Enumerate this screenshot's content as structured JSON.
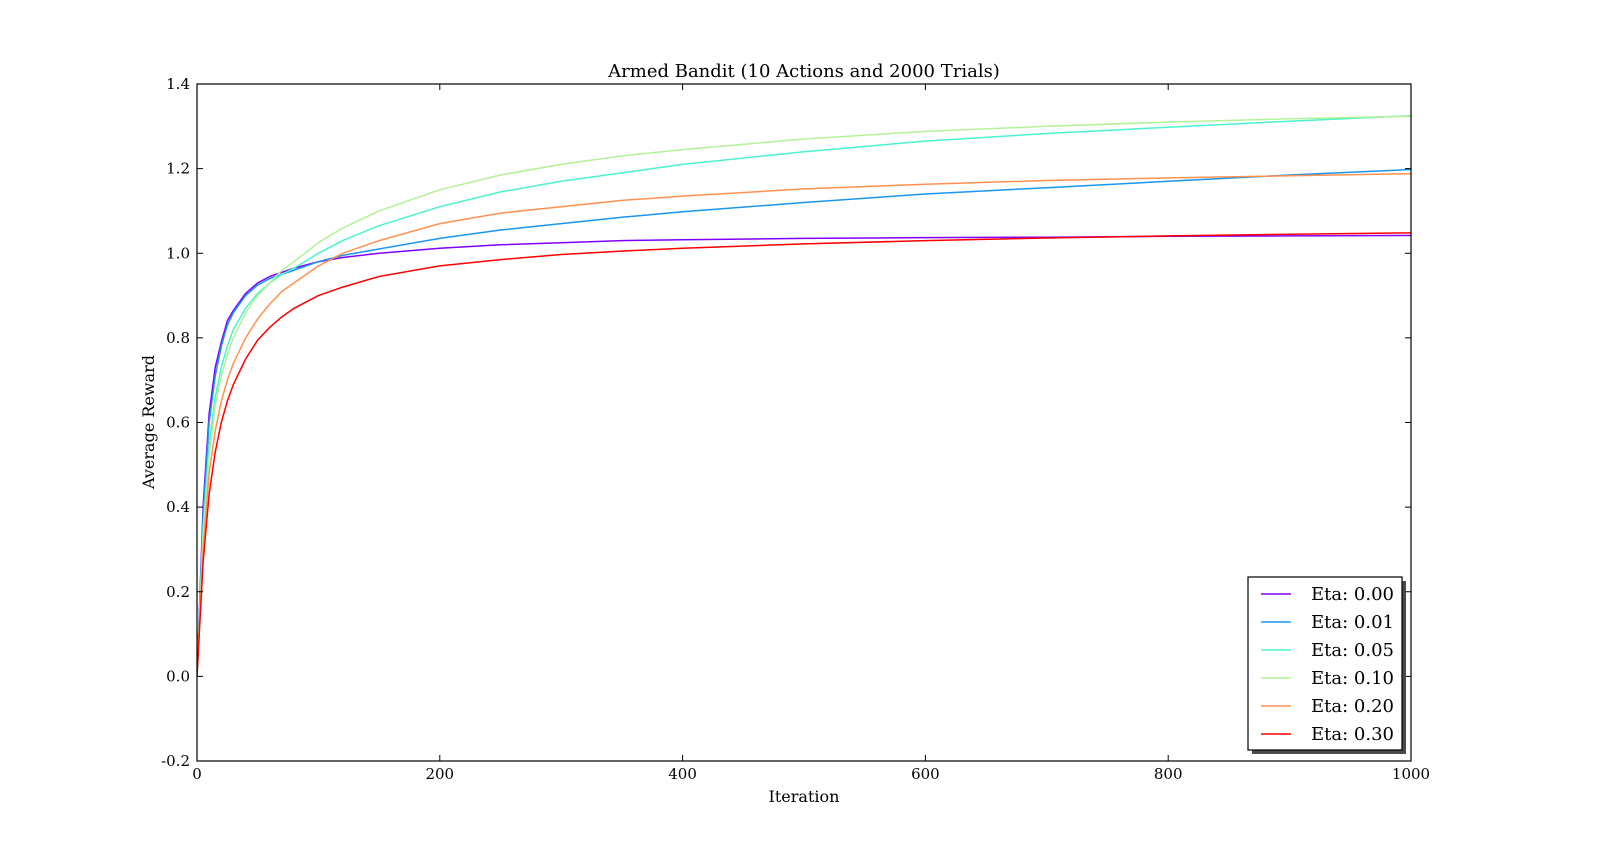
{
  "chart_data": {
    "type": "line",
    "title": "Armed Bandit (10 Actions and 2000 Trials)",
    "xlabel": "Iteration",
    "ylabel": "Average Reward",
    "xlim": [
      0,
      1000
    ],
    "ylim": [
      -0.2,
      1.4
    ],
    "xticks": [
      0,
      200,
      400,
      600,
      800,
      1000
    ],
    "xtick_labels": [
      "0",
      "200",
      "400",
      "600",
      "800",
      "1000"
    ],
    "yticks": [
      -0.2,
      0.0,
      0.2,
      0.4,
      0.6,
      0.8,
      1.0,
      1.2,
      1.4
    ],
    "ytick_labels": [
      "-0.2",
      "0.0",
      "0.2",
      "0.4",
      "0.6",
      "0.8",
      "1.0",
      "1.2",
      "1.4"
    ],
    "grid": false,
    "legend_position": "lower-right",
    "series": [
      {
        "name": "Eta: 0.00",
        "color": "#8000ff",
        "x": [
          0,
          5,
          10,
          15,
          20,
          25,
          30,
          40,
          50,
          60,
          70,
          80,
          100,
          120,
          150,
          200,
          250,
          300,
          350,
          400,
          500,
          600,
          700,
          800,
          900,
          1000
        ],
        "y": [
          0.0,
          0.4,
          0.62,
          0.73,
          0.79,
          0.84,
          0.865,
          0.905,
          0.93,
          0.945,
          0.955,
          0.965,
          0.98,
          0.99,
          1.0,
          1.012,
          1.02,
          1.025,
          1.03,
          1.032,
          1.035,
          1.037,
          1.038,
          1.04,
          1.041,
          1.042
        ]
      },
      {
        "name": "Eta: 0.01",
        "color": "#1a96f0",
        "x": [
          0,
          5,
          10,
          15,
          20,
          25,
          30,
          40,
          50,
          60,
          70,
          80,
          100,
          120,
          150,
          200,
          250,
          300,
          350,
          400,
          500,
          600,
          700,
          800,
          900,
          1000
        ],
        "y": [
          0.0,
          0.38,
          0.6,
          0.71,
          0.78,
          0.83,
          0.86,
          0.9,
          0.925,
          0.94,
          0.95,
          0.96,
          0.98,
          0.995,
          1.01,
          1.035,
          1.055,
          1.07,
          1.085,
          1.098,
          1.12,
          1.14,
          1.155,
          1.17,
          1.185,
          1.198
        ]
      },
      {
        "name": "Eta: 0.05",
        "color": "#4cf2ce",
        "x": [
          0,
          5,
          10,
          15,
          20,
          25,
          30,
          40,
          50,
          60,
          70,
          80,
          100,
          120,
          150,
          200,
          250,
          300,
          350,
          400,
          500,
          600,
          700,
          800,
          900,
          1000
        ],
        "y": [
          0.0,
          0.35,
          0.55,
          0.66,
          0.73,
          0.78,
          0.82,
          0.87,
          0.905,
          0.93,
          0.95,
          0.965,
          1.0,
          1.03,
          1.065,
          1.11,
          1.145,
          1.17,
          1.19,
          1.21,
          1.24,
          1.265,
          1.283,
          1.298,
          1.312,
          1.325
        ]
      },
      {
        "name": "Eta: 0.10",
        "color": "#b2f396",
        "x": [
          0,
          5,
          10,
          15,
          20,
          25,
          30,
          40,
          50,
          60,
          70,
          80,
          100,
          120,
          150,
          200,
          250,
          300,
          350,
          400,
          500,
          600,
          700,
          800,
          900,
          1000
        ],
        "y": [
          0.0,
          0.33,
          0.52,
          0.64,
          0.71,
          0.76,
          0.8,
          0.86,
          0.9,
          0.93,
          0.96,
          0.98,
          1.025,
          1.06,
          1.1,
          1.15,
          1.185,
          1.21,
          1.23,
          1.245,
          1.27,
          1.288,
          1.3,
          1.31,
          1.318,
          1.324
        ]
      },
      {
        "name": "Eta: 0.20",
        "color": "#ff9250",
        "x": [
          0,
          5,
          10,
          15,
          20,
          25,
          30,
          40,
          50,
          60,
          70,
          80,
          100,
          120,
          150,
          200,
          250,
          300,
          350,
          400,
          500,
          600,
          700,
          800,
          900,
          1000
        ],
        "y": [
          0.0,
          0.3,
          0.48,
          0.58,
          0.65,
          0.7,
          0.74,
          0.8,
          0.845,
          0.88,
          0.91,
          0.93,
          0.97,
          1.0,
          1.03,
          1.07,
          1.095,
          1.11,
          1.125,
          1.135,
          1.152,
          1.163,
          1.172,
          1.178,
          1.183,
          1.188
        ]
      },
      {
        "name": "Eta: 0.30",
        "color": "#ff0000",
        "x": [
          0,
          5,
          10,
          15,
          20,
          25,
          30,
          40,
          50,
          60,
          70,
          80,
          100,
          120,
          150,
          200,
          250,
          300,
          350,
          400,
          500,
          600,
          700,
          800,
          900,
          1000
        ],
        "y": [
          0.0,
          0.27,
          0.43,
          0.53,
          0.6,
          0.65,
          0.69,
          0.75,
          0.795,
          0.825,
          0.85,
          0.87,
          0.9,
          0.92,
          0.945,
          0.97,
          0.985,
          0.997,
          1.005,
          1.012,
          1.022,
          1.03,
          1.036,
          1.041,
          1.045,
          1.048
        ]
      }
    ]
  }
}
